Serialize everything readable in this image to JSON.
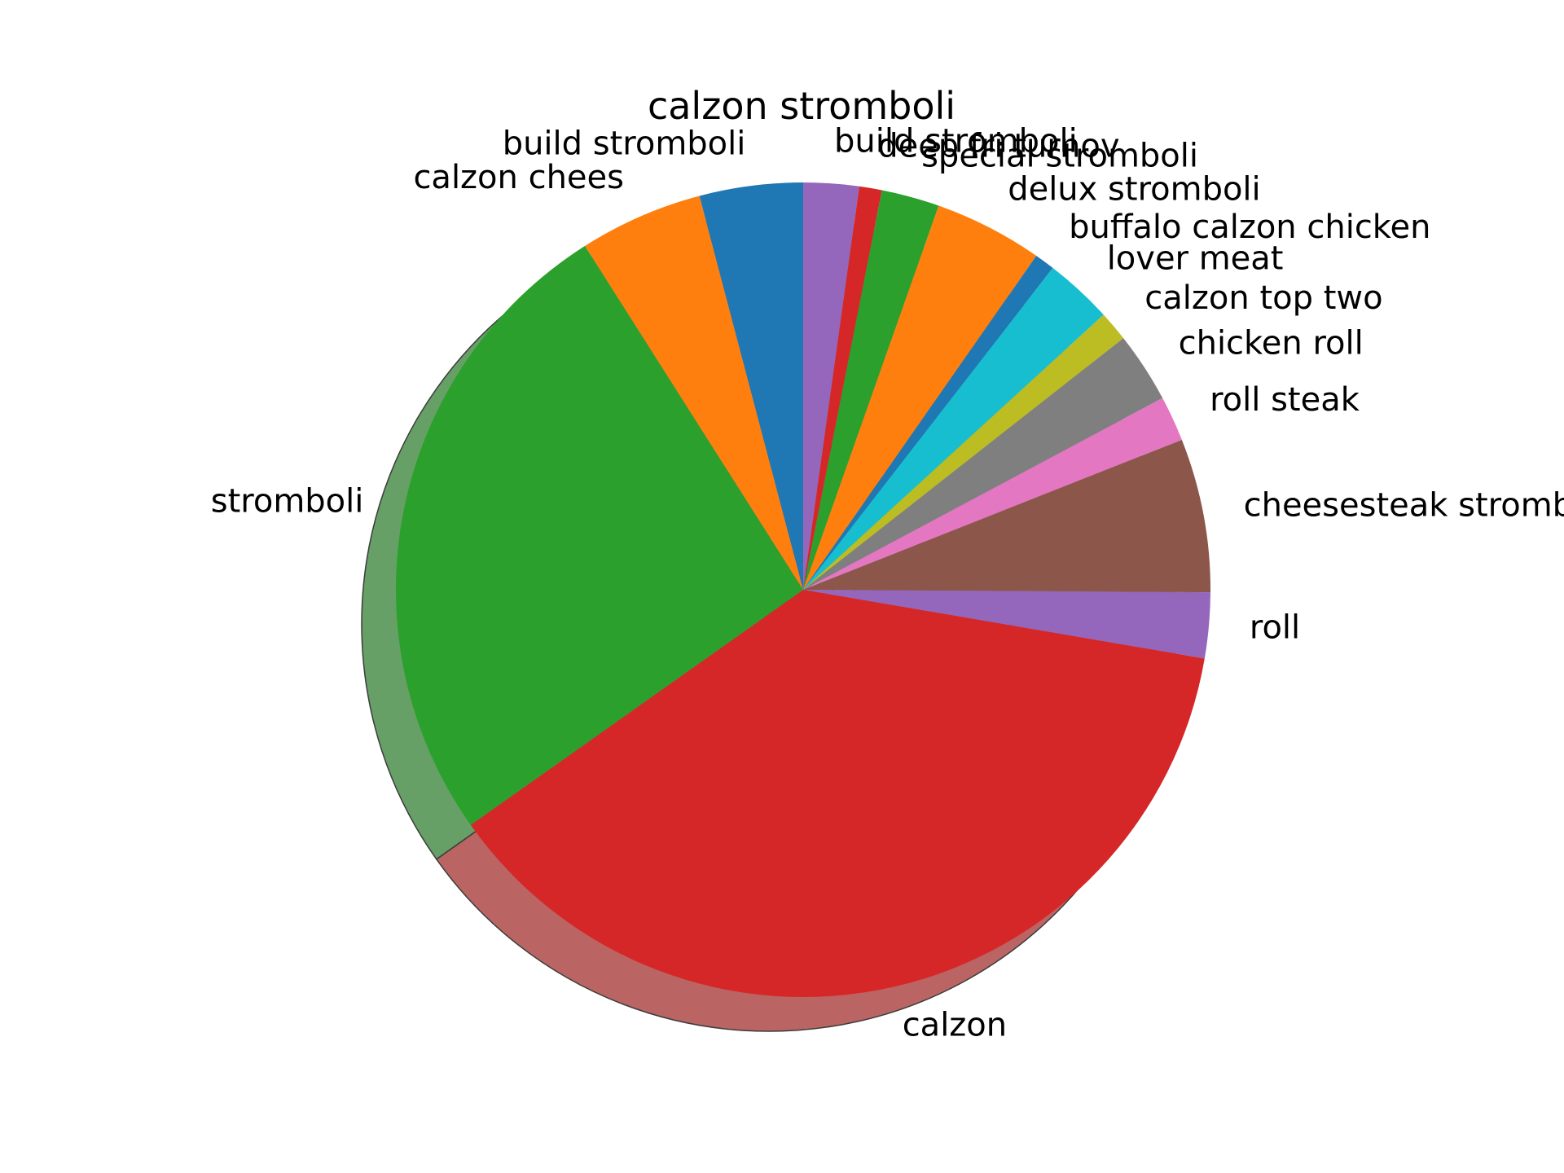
{
  "chart_data": {
    "type": "pie",
    "title": "calzon stromboli",
    "shadow": true,
    "start_angle_deg": 90,
    "direction": "clockwise",
    "slices": [
      {
        "label": "build stromboli",
        "value": 2.2,
        "color": "#9467bd"
      },
      {
        "label": "deep fri turnov",
        "value": 0.9,
        "color": "#d62728"
      },
      {
        "label": "special stromboli",
        "value": 2.3,
        "color": "#2ca02c"
      },
      {
        "label": "delux stromboli",
        "value": 4.3,
        "color": "#ff7f0e"
      },
      {
        "label": "buffalo calzon chicken",
        "value": 0.8,
        "color": "#1f77b4"
      },
      {
        "label": "lover meat",
        "value": 2.7,
        "color": "#17becf"
      },
      {
        "label": "calzon top two",
        "value": 1.2,
        "color": "#bcbd22"
      },
      {
        "label": "chicken roll",
        "value": 2.8,
        "color": "#7f7f7f"
      },
      {
        "label": "roll steak",
        "value": 1.8,
        "color": "#e377c2"
      },
      {
        "label": "cheesesteak stromboli",
        "value": 6.1,
        "color": "#8c564b"
      },
      {
        "label": "roll",
        "value": 2.6,
        "color": "#9467bd"
      },
      {
        "label": "calzon",
        "value": 37.5,
        "color": "#d62728"
      },
      {
        "label": "stromboli",
        "value": 25.8,
        "color": "#2ca02c"
      },
      {
        "label": "calzon chees",
        "value": 4.9,
        "color": "#ff7f0e"
      },
      {
        "label": "build stromboli",
        "value": 4.1,
        "color": "#1f77b4"
      }
    ]
  }
}
